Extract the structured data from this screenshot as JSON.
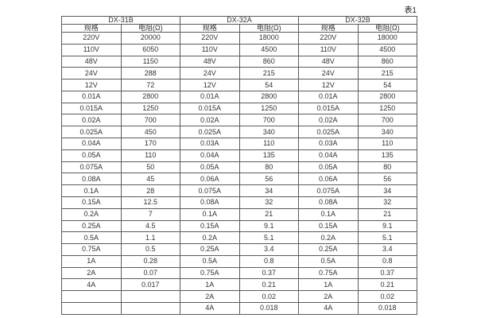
{
  "page": {
    "table_label": "表1",
    "colors": {
      "background": "#ffffff",
      "border": "#5a5a5a",
      "text": "#333333"
    }
  },
  "table": {
    "row_count": 24,
    "groups": [
      {
        "name": "DX-31B",
        "col_headers": [
          "规格",
          "电阻(Ω)"
        ],
        "rows": [
          [
            "220V",
            "20000"
          ],
          [
            "110V",
            "6050"
          ],
          [
            "48V",
            "1150"
          ],
          [
            "24V",
            "288"
          ],
          [
            "12V",
            "72"
          ],
          [
            "0.01A",
            "2800"
          ],
          [
            "0.015A",
            "1250"
          ],
          [
            "0.02A",
            "700"
          ],
          [
            "0.025A",
            "450"
          ],
          [
            "0.04A",
            "170"
          ],
          [
            "0.05A",
            "110"
          ],
          [
            "0.075A",
            "50"
          ],
          [
            "0.08A",
            "45"
          ],
          [
            "0.1A",
            "28"
          ],
          [
            "0.15A",
            "12.5"
          ],
          [
            "0.2A",
            "7"
          ],
          [
            "0.25A",
            "4.5"
          ],
          [
            "0.5A",
            "1.1"
          ],
          [
            "0.75A",
            "0.5"
          ],
          [
            "1A",
            "0.28"
          ],
          [
            "2A",
            "0.07"
          ],
          [
            "4A",
            "0.017"
          ],
          [
            "",
            ""
          ],
          [
            "",
            ""
          ]
        ]
      },
      {
        "name": "DX-32A",
        "col_headers": [
          "规格",
          "电阻(Ω)"
        ],
        "rows": [
          [
            "220V",
            "18000"
          ],
          [
            "110V",
            "4500"
          ],
          [
            "48V",
            "860"
          ],
          [
            "24V",
            "215"
          ],
          [
            "12V",
            "54"
          ],
          [
            "0.01A",
            "2800"
          ],
          [
            "0.015A",
            "1250"
          ],
          [
            "0.02A",
            "700"
          ],
          [
            "0.025A",
            "340"
          ],
          [
            "0.03A",
            "110"
          ],
          [
            "0.04A",
            "135"
          ],
          [
            "0.05A",
            "80"
          ],
          [
            "0.06A",
            "56"
          ],
          [
            "0.075A",
            "34"
          ],
          [
            "0.08A",
            "32"
          ],
          [
            "0.1A",
            "21"
          ],
          [
            "0.15A",
            "9.1"
          ],
          [
            "0.2A",
            "5.1"
          ],
          [
            "0.25A",
            "3.4"
          ],
          [
            "0.5A",
            "0.8"
          ],
          [
            "0.75A",
            "0.37"
          ],
          [
            "1A",
            "0.21"
          ],
          [
            "2A",
            "0.02"
          ],
          [
            "4A",
            "0.018"
          ]
        ]
      },
      {
        "name": "DX-32B",
        "col_headers": [
          "规格",
          "电阻(Ω)"
        ],
        "rows": [
          [
            "220V",
            "18000"
          ],
          [
            "110V",
            "4500"
          ],
          [
            "48V",
            "860"
          ],
          [
            "24V",
            "215"
          ],
          [
            "12V",
            "54"
          ],
          [
            "0.01A",
            "2800"
          ],
          [
            "0.015A",
            "1250"
          ],
          [
            "0.02A",
            "700"
          ],
          [
            "0.025A",
            "340"
          ],
          [
            "0.03A",
            "110"
          ],
          [
            "0.04A",
            "135"
          ],
          [
            "0.05A",
            "80"
          ],
          [
            "0.06A",
            "56"
          ],
          [
            "0.075A",
            "34"
          ],
          [
            "0.08A",
            "32"
          ],
          [
            "0.1A",
            "21"
          ],
          [
            "0.15A",
            "9.1"
          ],
          [
            "0.2A",
            "5.1"
          ],
          [
            "0.25A",
            "3.4"
          ],
          [
            "0.5A",
            "0.8"
          ],
          [
            "0.75A",
            "0.37"
          ],
          [
            "1A",
            "0.21"
          ],
          [
            "2A",
            "0.02"
          ],
          [
            "4A",
            "0.018"
          ]
        ]
      }
    ]
  }
}
